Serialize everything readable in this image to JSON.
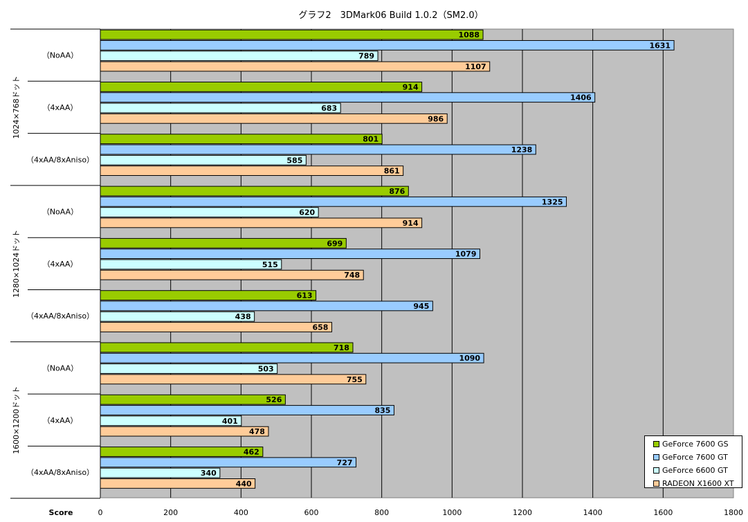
{
  "chart_data": {
    "type": "bar",
    "orientation": "horizontal",
    "title": "グラフ2　3DMark06 Build 1.0.2（SM2.0）",
    "xlabel": "Score",
    "xlim": [
      0,
      1800
    ],
    "xticks": [
      0,
      200,
      400,
      600,
      800,
      1000,
      1200,
      1400,
      1600,
      1800
    ],
    "grid": true,
    "legend_position": "bottom-right",
    "groups": [
      {
        "resolution": "1024×768ドット",
        "categories": [
          "（NoAA）",
          "（4xAA）",
          "（4xAA/8xAniso）"
        ]
      },
      {
        "resolution": "1280×1024ドット",
        "categories": [
          "（NoAA）",
          "（4xAA）",
          "（4xAA/8xAniso）"
        ]
      },
      {
        "resolution": "1600×1200ドット",
        "categories": [
          "（NoAA）",
          "（4xAA）",
          "（4xAA/8xAniso）"
        ]
      }
    ],
    "series": [
      {
        "name": "GeForce 7600 GS",
        "color": "#99cc00",
        "values": [
          1088,
          914,
          801,
          876,
          699,
          613,
          718,
          526,
          462
        ]
      },
      {
        "name": "GeForce 7600 GT",
        "color": "#99ccff",
        "values": [
          1631,
          1406,
          1238,
          1325,
          1079,
          945,
          1090,
          835,
          727
        ]
      },
      {
        "name": "GeForce 6600 GT",
        "color": "#ccffff",
        "values": [
          789,
          683,
          585,
          620,
          515,
          438,
          503,
          401,
          340
        ]
      },
      {
        "name": "RADEON X1600 XT",
        "color": "#ffcc99",
        "values": [
          1107,
          986,
          861,
          914,
          748,
          658,
          755,
          478,
          440
        ]
      }
    ]
  }
}
